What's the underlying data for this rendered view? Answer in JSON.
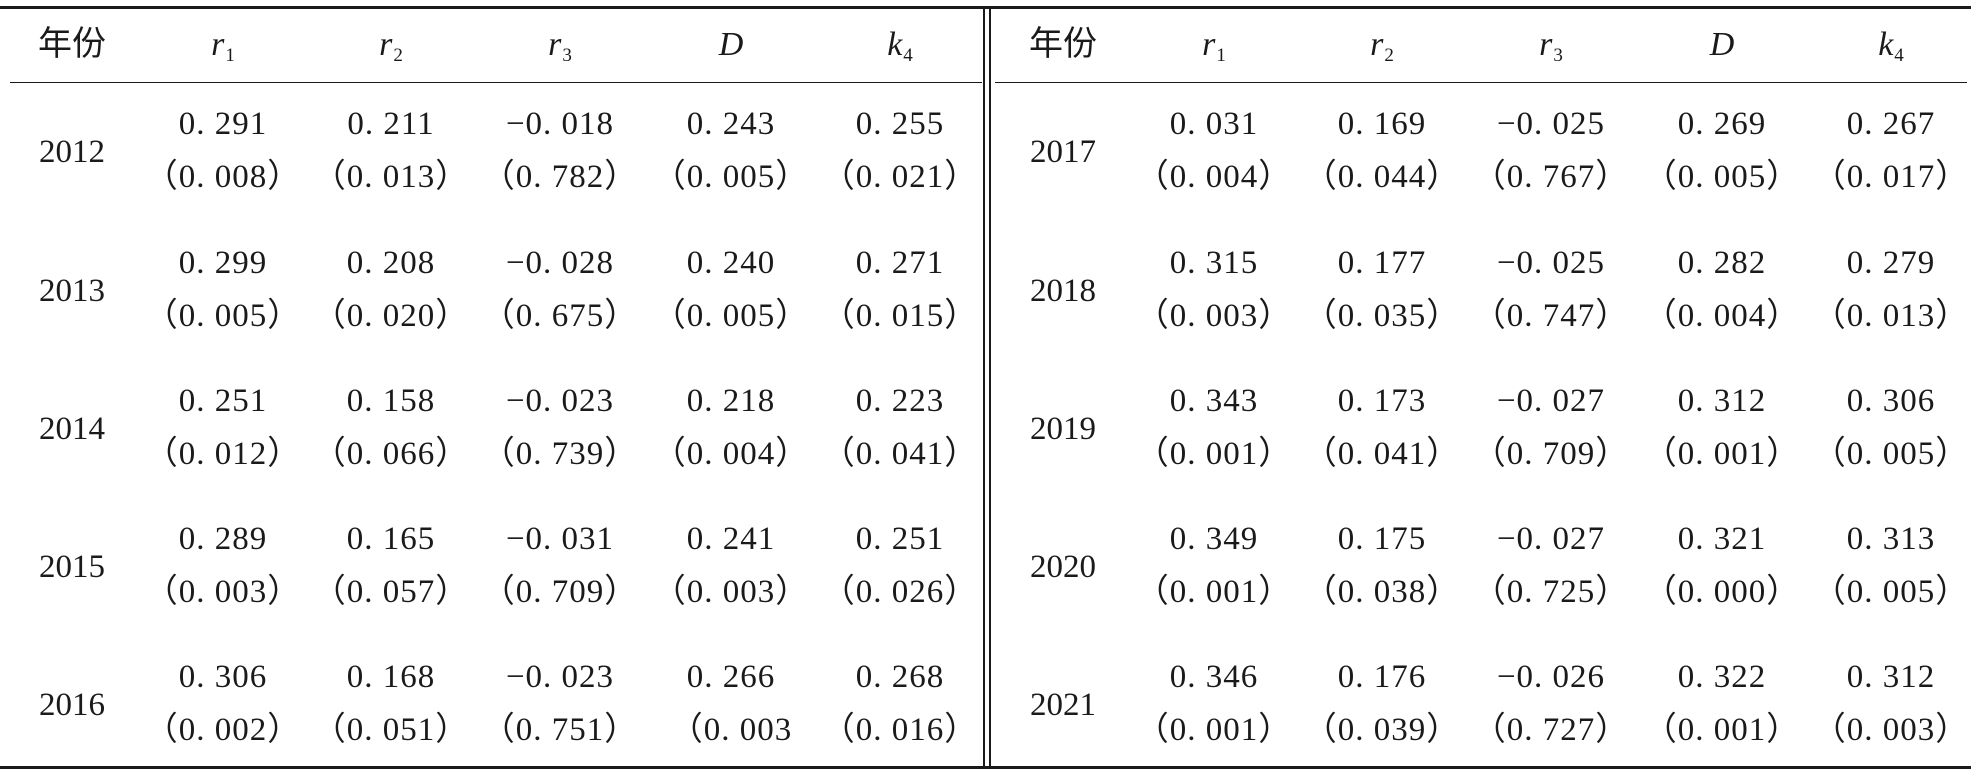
{
  "table": {
    "header": {
      "year": "年份",
      "cols": [
        {
          "sym": "r",
          "sub": "1"
        },
        {
          "sym": "r",
          "sub": "2"
        },
        {
          "sym": "r",
          "sub": "3"
        },
        {
          "sym": "D",
          "sub": ""
        },
        {
          "sym": "k",
          "sub": "4"
        }
      ]
    },
    "left": [
      {
        "year": "2012",
        "vals": [
          "0. 291",
          "0. 211",
          "−0. 018",
          "0. 243",
          "0. 255"
        ],
        "pvals": [
          "（0. 008）",
          "（0. 013）",
          "（0. 782）",
          "（0. 005）",
          "（0. 021）"
        ]
      },
      {
        "year": "2013",
        "vals": [
          "0. 299",
          "0. 208",
          "−0. 028",
          "0. 240",
          "0. 271"
        ],
        "pvals": [
          "（0. 005）",
          "（0. 020）",
          "（0. 675）",
          "（0. 005）",
          "（0. 015）"
        ]
      },
      {
        "year": "2014",
        "vals": [
          "0. 251",
          "0. 158",
          "−0. 023",
          "0. 218",
          "0. 223"
        ],
        "pvals": [
          "（0. 012）",
          "（0. 066）",
          "（0. 739）",
          "（0. 004）",
          "（0. 041）"
        ]
      },
      {
        "year": "2015",
        "vals": [
          "0. 289",
          "0. 165",
          "−0. 031",
          "0. 241",
          "0. 251"
        ],
        "pvals": [
          "（0. 003）",
          "（0. 057）",
          "（0. 709）",
          "（0. 003）",
          "（0. 026）"
        ]
      },
      {
        "year": "2016",
        "vals": [
          "0. 306",
          "0. 168",
          "−0. 023",
          "0. 266",
          "0. 268"
        ],
        "pvals": [
          "（0. 002）",
          "（0. 051）",
          "（0. 751）",
          "（0. 003",
          "（0. 016）"
        ]
      }
    ],
    "right": [
      {
        "year": "2017",
        "vals": [
          "0. 031",
          "0. 169",
          "−0. 025",
          "0. 269",
          "0. 267"
        ],
        "pvals": [
          "（0. 004）",
          "（0. 044）",
          "（0. 767）",
          "（0. 005）",
          "（0. 017）"
        ]
      },
      {
        "year": "2018",
        "vals": [
          "0. 315",
          "0. 177",
          "−0. 025",
          "0. 282",
          "0. 279"
        ],
        "pvals": [
          "（0. 003）",
          "（0. 035）",
          "（0. 747）",
          "（0. 004）",
          "（0. 013）"
        ]
      },
      {
        "year": "2019",
        "vals": [
          "0. 343",
          "0. 173",
          "−0. 027",
          "0. 312",
          "0. 306"
        ],
        "pvals": [
          "（0. 001）",
          "（0. 041）",
          "（0. 709）",
          "（0. 001）",
          "（0. 005）"
        ]
      },
      {
        "year": "2020",
        "vals": [
          "0. 349",
          "0. 175",
          "−0. 027",
          "0. 321",
          "0. 313"
        ],
        "pvals": [
          "（0. 001）",
          "（0. 038）",
          "（0. 725）",
          "（0. 000）",
          "（0. 005）"
        ]
      },
      {
        "year": "2021",
        "vals": [
          "0. 346",
          "0. 176",
          "−0. 026",
          "0. 322",
          "0. 312"
        ],
        "pvals": [
          "（0. 001）",
          "（0. 039）",
          "（0. 727）",
          "（0. 001）",
          "（0. 003）"
        ]
      }
    ]
  }
}
